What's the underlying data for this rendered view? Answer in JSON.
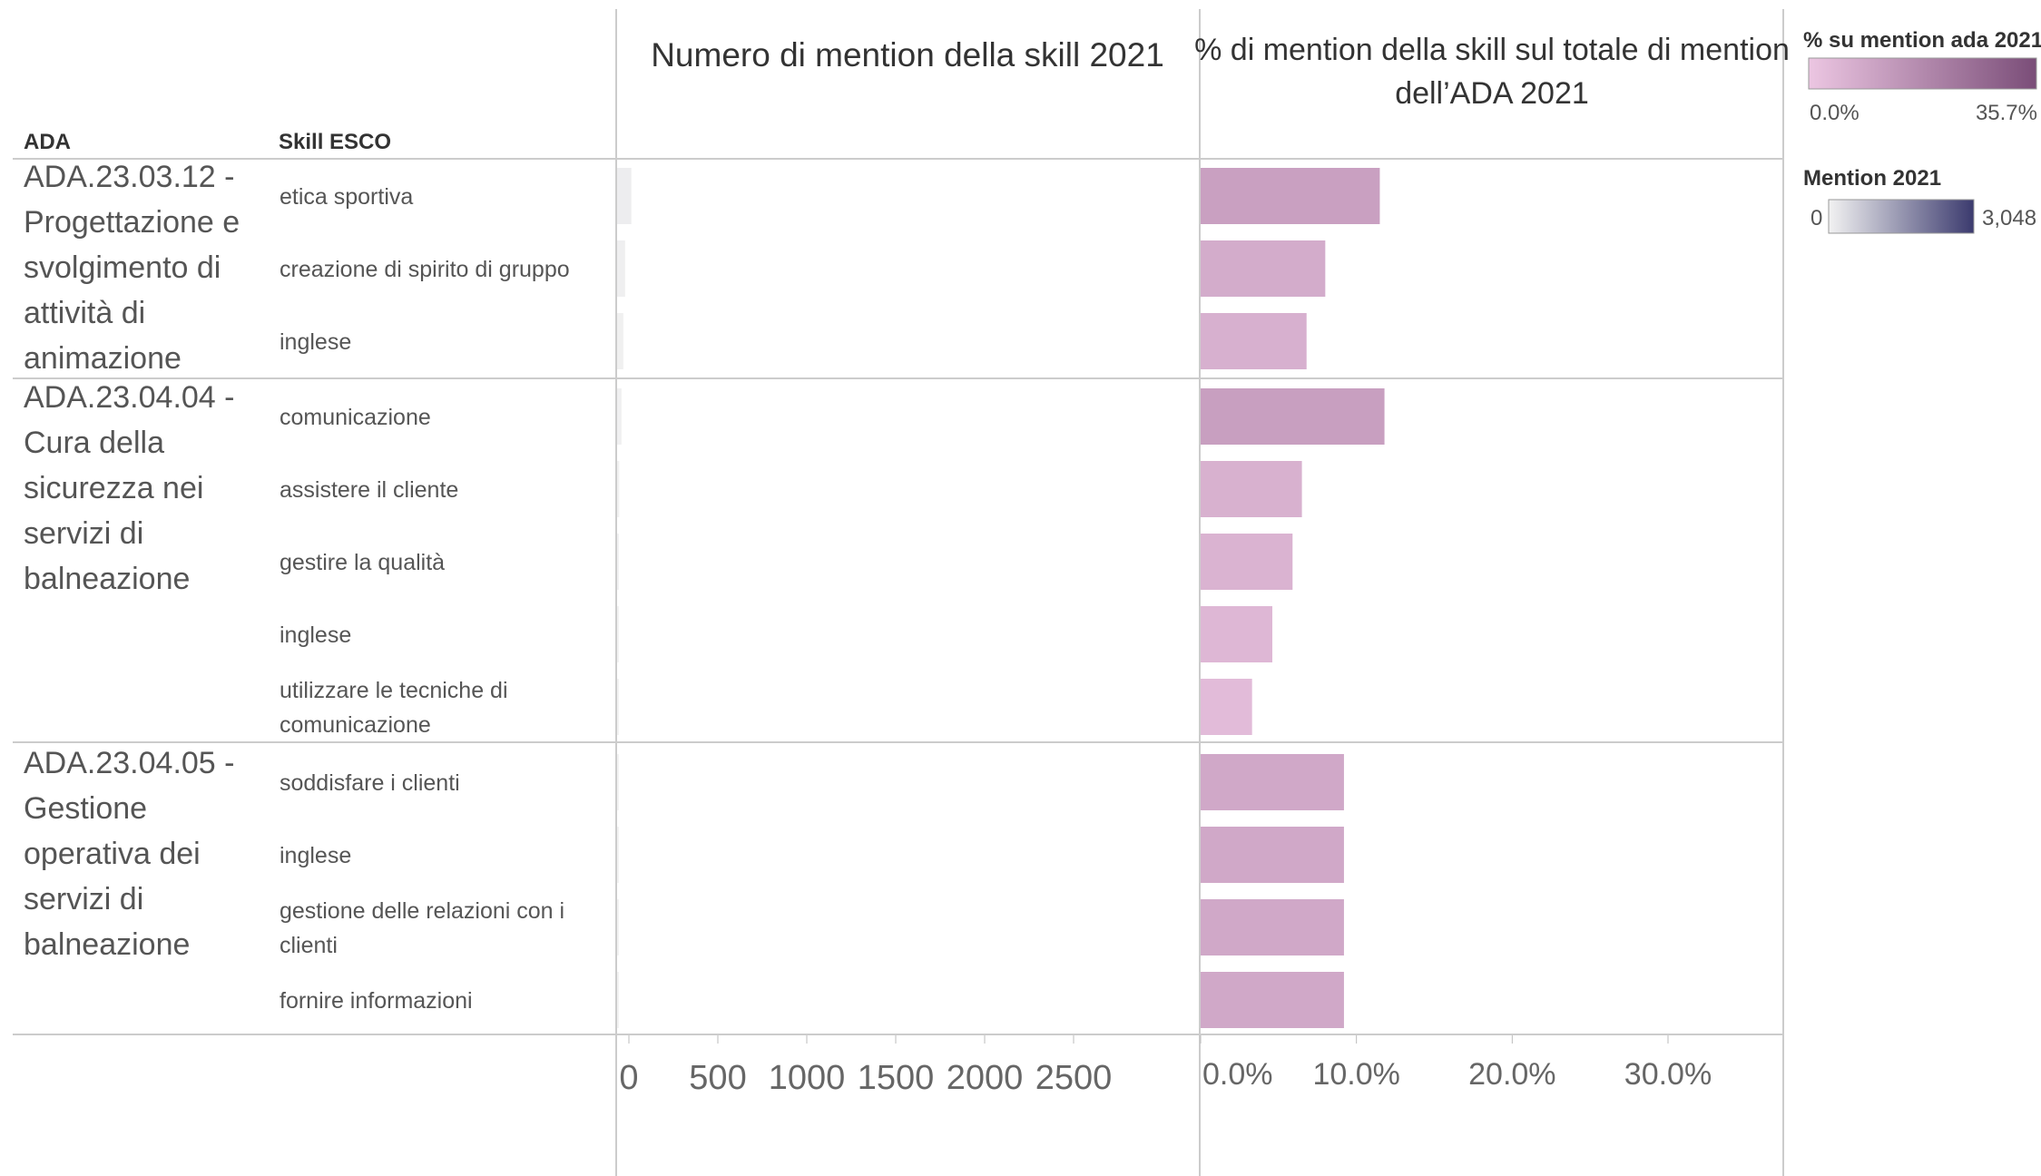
{
  "headers": {
    "ada": "ADA",
    "skill": "Skill ESCO",
    "count_title": "Numero di mention della skill 2021",
    "pct_title_line1": "% di mention della skill sul totale di mention",
    "pct_title_line2": "dell’ADA 2021"
  },
  "legend": {
    "pct_title": "% su mention ada 2021",
    "pct_min": "0.0%",
    "pct_max": "35.7%",
    "pct_color_min": "#ecc6e2",
    "pct_color_max": "#7a4d78",
    "mention_title": "Mention 2021",
    "mention_min": "0",
    "mention_max": "3,048",
    "mention_color_min": "#f2f2f2",
    "mention_color_max": "#3b3a6e"
  },
  "chart_data": {
    "type": "bar",
    "groups": [
      {
        "ada_lines": [
          "ADA.23.03.12 -",
          "Progettazione e",
          "svolgimento di",
          "attività di",
          "animazione"
        ],
        "rows": [
          {
            "skill": [
              "etica sportiva"
            ],
            "mentions": 80,
            "pct": 11.5
          },
          {
            "skill": [
              "creazione di spirito di gruppo"
            ],
            "mentions": 45,
            "pct": 8.0
          },
          {
            "skill": [
              "inglese"
            ],
            "mentions": 35,
            "pct": 6.8
          }
        ]
      },
      {
        "ada_lines": [
          "ADA.23.04.04 -",
          "Cura della",
          "sicurezza nei",
          "servizi di",
          "balneazione"
        ],
        "rows": [
          {
            "skill": [
              "comunicazione"
            ],
            "mentions": 25,
            "pct": 11.8
          },
          {
            "skill": [
              "assistere il cliente"
            ],
            "mentions": 12,
            "pct": 6.5
          },
          {
            "skill": [
              "gestire la qualità"
            ],
            "mentions": 10,
            "pct": 5.9
          },
          {
            "skill": [
              "inglese"
            ],
            "mentions": 8,
            "pct": 4.6
          },
          {
            "skill": [
              "utilizzare le tecniche di",
              "comunicazione"
            ],
            "mentions": 6,
            "pct": 3.3
          }
        ]
      },
      {
        "ada_lines": [
          "ADA.23.04.05 -",
          "Gestione",
          "operativa dei",
          "servizi di",
          "balneazione"
        ],
        "rows": [
          {
            "skill": [
              "soddisfare i clienti"
            ],
            "mentions": 6,
            "pct": 9.2
          },
          {
            "skill": [
              "inglese"
            ],
            "mentions": 6,
            "pct": 9.2
          },
          {
            "skill": [
              "gestione delle relazioni con i",
              "clienti"
            ],
            "mentions": 6,
            "pct": 9.2
          },
          {
            "skill": [
              "fornire informazioni"
            ],
            "mentions": 6,
            "pct": 9.2
          }
        ]
      }
    ],
    "count_axis": {
      "min": 0,
      "max": 3048,
      "ticks": [
        0,
        500,
        1000,
        1500,
        2000,
        2500
      ],
      "tick_labels": [
        "0",
        "500",
        "1000",
        "1500",
        "2000",
        "2500"
      ]
    },
    "pct_axis": {
      "min": 0,
      "max": 37,
      "ticks": [
        0,
        10,
        20,
        30
      ],
      "tick_labels": [
        "0.0%",
        "10.0%",
        "20.0%",
        "30.0%"
      ]
    }
  }
}
